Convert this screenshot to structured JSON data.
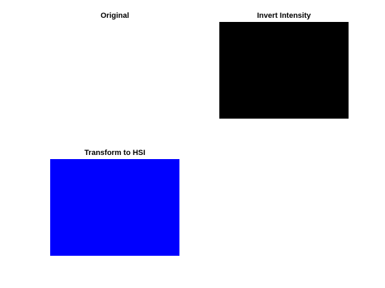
{
  "figure": {
    "background": "#ffffff",
    "panels": [
      {
        "title": "Original",
        "fill": "#ffffff"
      },
      {
        "title": "Invert Intensity",
        "fill": "#000000"
      },
      {
        "title": "Transform to HSI",
        "fill": "#0000ff"
      }
    ]
  }
}
